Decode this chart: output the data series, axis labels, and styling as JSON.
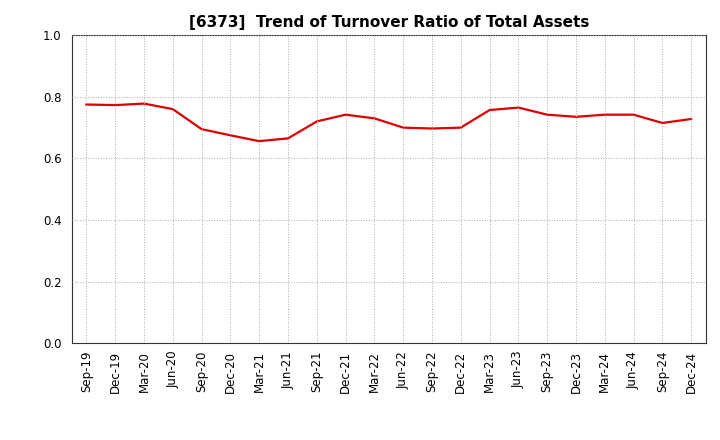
{
  "title": "[6373]  Trend of Turnover Ratio of Total Assets",
  "x_labels": [
    "Sep-19",
    "Dec-19",
    "Mar-20",
    "Jun-20",
    "Sep-20",
    "Dec-20",
    "Mar-21",
    "Jun-21",
    "Sep-21",
    "Dec-21",
    "Mar-22",
    "Jun-22",
    "Sep-22",
    "Dec-22",
    "Mar-23",
    "Jun-23",
    "Sep-23",
    "Dec-23",
    "Mar-24",
    "Jun-24",
    "Sep-24",
    "Dec-24"
  ],
  "y_values": [
    0.775,
    0.773,
    0.778,
    0.76,
    0.695,
    0.675,
    0.656,
    0.665,
    0.72,
    0.742,
    0.73,
    0.7,
    0.697,
    0.7,
    0.757,
    0.765,
    0.742,
    0.735,
    0.742,
    0.742,
    0.715,
    0.728
  ],
  "line_color": "#dd0000",
  "line_width": 1.6,
  "ylim": [
    0.0,
    1.0
  ],
  "yticks": [
    0.0,
    0.2,
    0.4,
    0.6,
    0.8,
    1.0
  ],
  "background_color": "#ffffff",
  "grid_color": "#aaaaaa",
  "title_fontsize": 11,
  "tick_fontsize": 8.5
}
